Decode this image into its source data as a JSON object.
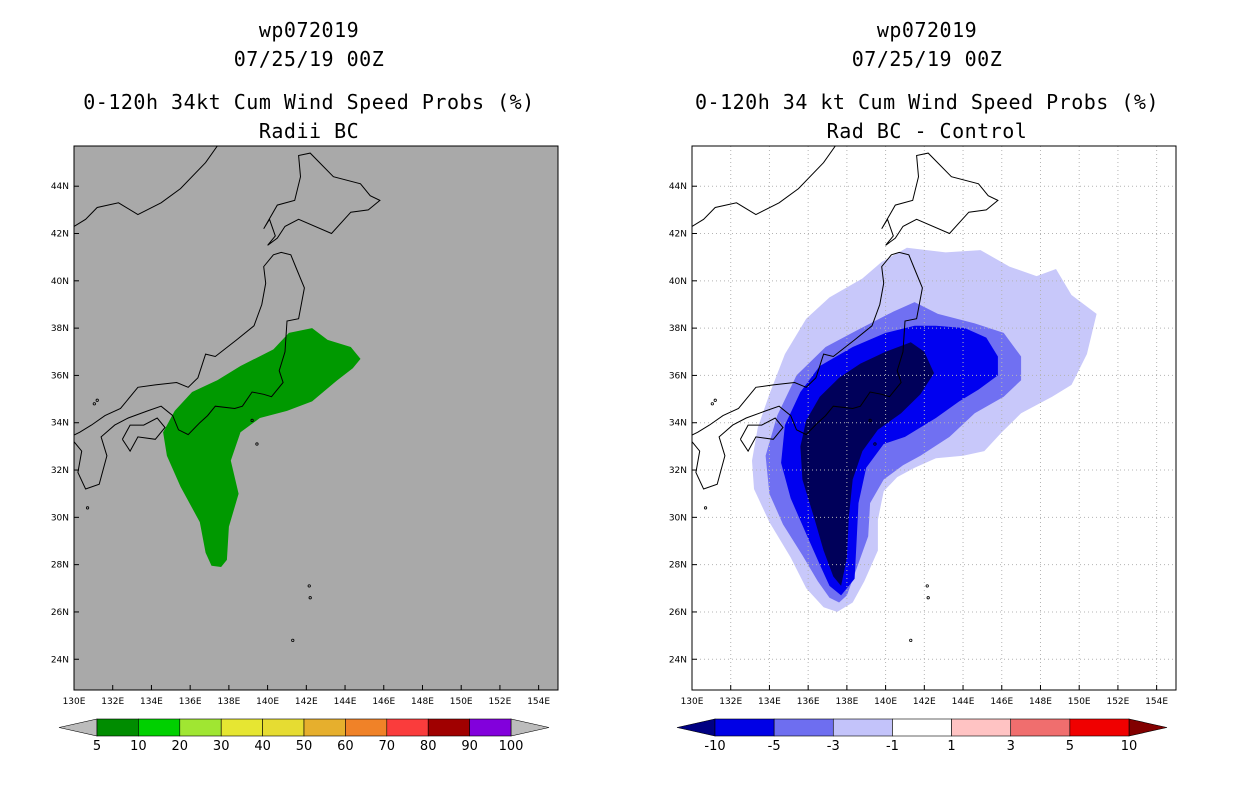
{
  "chart_data": [
    {
      "type": "heatmap",
      "storm_id": "wp072019",
      "date": "07/25/19 00Z",
      "title": "0-120h 34kt Cum Wind Speed Probs (%)",
      "subtitle": "Radii BC",
      "x_ticks": [
        "130E",
        "132E",
        "134E",
        "136E",
        "138E",
        "140E",
        "142E",
        "144E",
        "146E",
        "148E",
        "150E",
        "152E",
        "154E"
      ],
      "y_ticks": [
        "44N",
        "42N",
        "40N",
        "38N",
        "36N",
        "34N",
        "32N",
        "30N",
        "28N",
        "26N",
        "24N"
      ],
      "xlim": [
        130,
        155
      ],
      "ylim": [
        22.7,
        45.7
      ],
      "grid": false,
      "background": "#a9a9a9",
      "colorbar": {
        "labels": [
          "5",
          "10",
          "20",
          "30",
          "40",
          "50",
          "60",
          "70",
          "80",
          "90",
          "100"
        ],
        "colors": [
          "#008c00",
          "#00d000",
          "#a0e632",
          "#e6e632",
          "#e6dc32",
          "#e6af2d",
          "#f08228",
          "#fa3c3c",
          "#a00000",
          "#8200dc"
        ],
        "low_color": "#bcbcbc",
        "high_color": "#bcbcbc"
      },
      "regions": [
        {
          "level": "5-10",
          "color": "#009900",
          "lonlat": [
            [
              137.6,
              27.9
            ],
            [
              137.1,
              27.95
            ],
            [
              136.8,
              28.5
            ],
            [
              136.5,
              29.8
            ],
            [
              135.5,
              31.3
            ],
            [
              134.8,
              32.6
            ],
            [
              134.6,
              33.6
            ],
            [
              135.2,
              34.5
            ],
            [
              136.1,
              35.3
            ],
            [
              137.4,
              35.8
            ],
            [
              138.6,
              36.4
            ],
            [
              140.3,
              37.1
            ],
            [
              141.1,
              37.8
            ],
            [
              142.3,
              38.0
            ],
            [
              143.1,
              37.5
            ],
            [
              144.3,
              37.2
            ],
            [
              144.8,
              36.7
            ],
            [
              144.4,
              36.3
            ],
            [
              143.6,
              35.8
            ],
            [
              142.3,
              34.9
            ],
            [
              141.0,
              34.5
            ],
            [
              139.6,
              34.2
            ],
            [
              138.6,
              33.6
            ],
            [
              138.1,
              32.4
            ],
            [
              138.5,
              31.0
            ],
            [
              138.0,
              29.6
            ],
            [
              137.9,
              28.2
            ]
          ]
        }
      ]
    },
    {
      "type": "heatmap",
      "storm_id": "wp072019",
      "date": "07/25/19 00Z",
      "title": "0-120h 34 kt Cum Wind Speed Probs (%)",
      "subtitle": "Rad BC - Control",
      "x_ticks": [
        "130E",
        "132E",
        "134E",
        "136E",
        "138E",
        "140E",
        "142E",
        "144E",
        "146E",
        "148E",
        "150E",
        "152E",
        "154E"
      ],
      "y_ticks": [
        "44N",
        "42N",
        "40N",
        "38N",
        "36N",
        "34N",
        "32N",
        "30N",
        "28N",
        "26N",
        "24N"
      ],
      "xlim": [
        130,
        155
      ],
      "ylim": [
        22.7,
        45.7
      ],
      "grid": true,
      "background": "#ffffff",
      "colorbar": {
        "labels": [
          "-10",
          "-5",
          "-3",
          "-1",
          "1",
          "3",
          "5",
          "10"
        ],
        "colors": [
          "#0000e6",
          "#6e6ef0",
          "#c3c3fa",
          "#ffffff",
          "#ffc3c3",
          "#f06e6e",
          "#f00000"
        ],
        "low_color": "#000082",
        "high_color": "#820000"
      },
      "regions": [
        {
          "level": "-1 to -3",
          "color": "#c8c8fa",
          "lonlat": [
            [
              137.5,
              26.0
            ],
            [
              136.8,
              26.2
            ],
            [
              135.9,
              27.0
            ],
            [
              135.1,
              28.3
            ],
            [
              134.0,
              29.8
            ],
            [
              133.2,
              31.2
            ],
            [
              133.1,
              32.4
            ],
            [
              133.4,
              33.8
            ],
            [
              134.0,
              35.2
            ],
            [
              134.8,
              36.9
            ],
            [
              135.9,
              38.4
            ],
            [
              137.1,
              39.3
            ],
            [
              138.8,
              40.1
            ],
            [
              139.8,
              40.8
            ],
            [
              141.1,
              41.4
            ],
            [
              143.1,
              41.2
            ],
            [
              144.9,
              41.3
            ],
            [
              146.4,
              40.6
            ],
            [
              147.8,
              40.2
            ],
            [
              148.8,
              40.5
            ],
            [
              149.6,
              39.4
            ],
            [
              150.9,
              38.6
            ],
            [
              150.4,
              36.9
            ],
            [
              149.6,
              35.6
            ],
            [
              148.6,
              35.1
            ],
            [
              147.0,
              34.4
            ],
            [
              146.0,
              33.6
            ],
            [
              145.1,
              32.8
            ],
            [
              144.0,
              32.6
            ],
            [
              142.6,
              32.5
            ],
            [
              141.5,
              32.1
            ],
            [
              140.6,
              31.7
            ],
            [
              139.9,
              31.1
            ],
            [
              139.6,
              29.9
            ],
            [
              139.6,
              28.6
            ],
            [
              138.9,
              27.3
            ],
            [
              138.3,
              26.4
            ]
          ]
        },
        {
          "level": "-3 to -5",
          "color": "#7070f2",
          "lonlat": [
            [
              137.6,
              26.4
            ],
            [
              137.1,
              26.6
            ],
            [
              136.5,
              27.3
            ],
            [
              135.7,
              28.4
            ],
            [
              134.7,
              29.7
            ],
            [
              134.0,
              31.0
            ],
            [
              133.8,
              32.6
            ],
            [
              134.4,
              34.3
            ],
            [
              135.4,
              36.0
            ],
            [
              136.9,
              37.2
            ],
            [
              138.5,
              37.9
            ],
            [
              140.4,
              38.7
            ],
            [
              141.5,
              39.1
            ],
            [
              142.7,
              38.6
            ],
            [
              144.6,
              38.2
            ],
            [
              146.1,
              37.8
            ],
            [
              147.0,
              36.8
            ],
            [
              147.0,
              35.8
            ],
            [
              146.1,
              35.1
            ],
            [
              144.6,
              34.4
            ],
            [
              143.3,
              33.4
            ],
            [
              141.8,
              32.6
            ],
            [
              140.9,
              32.2
            ],
            [
              139.9,
              31.6
            ],
            [
              139.2,
              30.6
            ],
            [
              139.1,
              29.2
            ],
            [
              138.4,
              27.6
            ],
            [
              138.0,
              26.7
            ]
          ]
        },
        {
          "level": "-5 to -10",
          "color": "#0000f0",
          "lonlat": [
            [
              137.7,
              26.7
            ],
            [
              137.1,
              27.1
            ],
            [
              136.6,
              28.0
            ],
            [
              135.9,
              29.3
            ],
            [
              135.1,
              30.8
            ],
            [
              134.6,
              32.3
            ],
            [
              134.8,
              33.9
            ],
            [
              135.6,
              35.3
            ],
            [
              136.6,
              36.4
            ],
            [
              138.3,
              37.2
            ],
            [
              140.0,
              37.8
            ],
            [
              141.5,
              38.1
            ],
            [
              142.6,
              38.1
            ],
            [
              144.1,
              38.0
            ],
            [
              145.2,
              37.6
            ],
            [
              145.8,
              36.8
            ],
            [
              145.8,
              36.0
            ],
            [
              144.8,
              35.4
            ],
            [
              143.8,
              34.9
            ],
            [
              142.6,
              34.2
            ],
            [
              141.0,
              33.4
            ],
            [
              139.9,
              33.1
            ],
            [
              139.0,
              32.1
            ],
            [
              138.6,
              30.6
            ],
            [
              138.5,
              29.0
            ],
            [
              138.4,
              27.4
            ]
          ]
        },
        {
          "level": "< -10",
          "color": "#00005a",
          "lonlat": [
            [
              137.7,
              27.1
            ],
            [
              137.3,
              27.5
            ],
            [
              136.8,
              28.6
            ],
            [
              136.3,
              30.0
            ],
            [
              135.7,
              31.6
            ],
            [
              135.6,
              33.0
            ],
            [
              135.9,
              34.1
            ],
            [
              136.6,
              35.1
            ],
            [
              137.6,
              35.9
            ],
            [
              138.7,
              36.5
            ],
            [
              140.0,
              37.0
            ],
            [
              141.3,
              37.4
            ],
            [
              142.0,
              37.0
            ],
            [
              142.5,
              36.1
            ],
            [
              141.8,
              35.2
            ],
            [
              140.8,
              34.4
            ],
            [
              139.6,
              33.7
            ],
            [
              138.8,
              32.8
            ],
            [
              138.3,
              31.6
            ],
            [
              138.1,
              30.0
            ],
            [
              138.0,
              28.3
            ]
          ]
        }
      ]
    }
  ]
}
